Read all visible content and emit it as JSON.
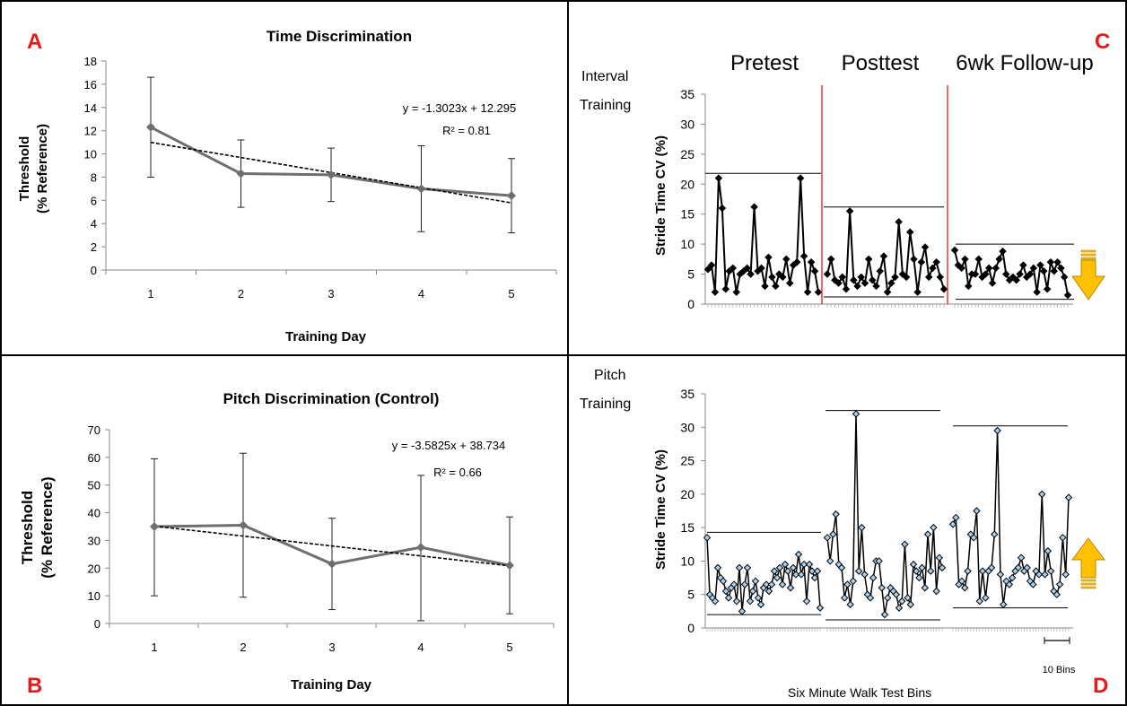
{
  "panel_letters": {
    "a": "A",
    "b": "B",
    "c": "C",
    "d": "D"
  },
  "colors": {
    "letter": "#e8191a",
    "series": "#6e6e6e",
    "divider_red": "#e8191a",
    "arrow_fill": "#ffc000",
    "arrow_edge": "#b8860b",
    "marker_blue": "#a9d1f0"
  },
  "chart_data": [
    {
      "panel": "A",
      "type": "line",
      "title": "Time Discrimination",
      "xlabel": "Training Day",
      "ylabel": [
        "Threshold",
        "(% Reference)"
      ],
      "x": [
        1,
        2,
        3,
        4,
        5
      ],
      "y": [
        12.3,
        8.3,
        8.2,
        7.0,
        6.4
      ],
      "error_upper": [
        16.6,
        11.2,
        10.5,
        10.7,
        9.6
      ],
      "error_lower": [
        8.0,
        5.4,
        5.9,
        3.3,
        3.2
      ],
      "trendline": {
        "slope": -1.3023,
        "intercept": 12.295
      },
      "equation": "y = -1.3023x + 12.295",
      "r2": "R² = 0.81",
      "ylim": [
        0,
        18
      ],
      "yticks": [
        0,
        2,
        4,
        6,
        8,
        10,
        12,
        14,
        16,
        18
      ],
      "xticks": [
        "1",
        "2",
        "3",
        "4",
        "5"
      ]
    },
    {
      "panel": "B",
      "type": "line",
      "title": "Pitch Discrimination (Control)",
      "xlabel": "Training Day",
      "ylabel": [
        "Threshold",
        "(% Reference)"
      ],
      "x": [
        1,
        2,
        3,
        4,
        5
      ],
      "y": [
        35.0,
        35.5,
        21.5,
        27.5,
        21.0
      ],
      "error_upper": [
        59.5,
        61.5,
        38.0,
        53.5,
        38.5
      ],
      "error_lower": [
        10.0,
        9.5,
        5.0,
        1.0,
        3.5
      ],
      "trendline": {
        "slope": -3.5825,
        "intercept": 38.734
      },
      "equation": "y = -3.5825x + 38.734",
      "r2": "R² = 0.66",
      "ylim": [
        0,
        70
      ],
      "yticks": [
        0,
        10,
        20,
        30,
        40,
        50,
        60,
        70
      ],
      "xticks": [
        "1",
        "2",
        "3",
        "4",
        "5"
      ]
    },
    {
      "panel": "C",
      "type": "line",
      "row_label": [
        "Interval",
        "Training"
      ],
      "phase_labels": [
        "Pretest",
        "Posttest",
        "6wk Follow-up"
      ],
      "ylabel": "Stride Time CV (%)",
      "ylim": [
        0,
        35
      ],
      "yticks": [
        0,
        5,
        10,
        15,
        20,
        25,
        30,
        35
      ],
      "segments": [
        {
          "name": "Pretest",
          "values": [
            5.8,
            6.5,
            2.0,
            21.0,
            16.0,
            2.5,
            5.5,
            6.0,
            2.0,
            5.0,
            5.5,
            6.0,
            5.0,
            16.2,
            5.5,
            6.0,
            3.0,
            7.8,
            4.5,
            3.0,
            5.0,
            4.5,
            7.5,
            3.5,
            6.5,
            7.0,
            21.0,
            8.0,
            2.0,
            7.0,
            5.5,
            2.0
          ],
          "max_line": 21.8,
          "min_line": null
        },
        {
          "name": "Posttest",
          "values": [
            5.0,
            7.5,
            4.0,
            3.5,
            4.5,
            2.5,
            15.5,
            4.0,
            3.0,
            4.5,
            3.5,
            7.5,
            4.0,
            3.0,
            5.5,
            8.0,
            2.0,
            3.5,
            4.5,
            13.7,
            5.0,
            4.5,
            12.0,
            7.5,
            2.0,
            7.0,
            9.5,
            4.5,
            6.0,
            7.0,
            4.5,
            2.5
          ],
          "max_line": 16.2,
          "min_line": 1.2
        },
        {
          "name": "6wk Follow-up",
          "values": [
            9.0,
            6.5,
            6.0,
            7.5,
            3.0,
            5.0,
            5.0,
            7.5,
            4.5,
            5.0,
            6.0,
            3.5,
            6.0,
            7.5,
            8.8,
            5.0,
            4.0,
            4.5,
            4.0,
            5.0,
            6.5,
            4.5,
            5.0,
            6.0,
            2.0,
            6.5,
            5.5,
            2.5,
            7.0,
            5.5,
            7.0,
            6.0,
            4.5,
            1.5
          ],
          "max_line": 10.0,
          "min_line": 0.8
        }
      ],
      "trend": "down"
    },
    {
      "panel": "D",
      "type": "line",
      "row_label": [
        "Pitch",
        "Training"
      ],
      "ylabel": "Stride Time CV (%)",
      "xlabel": "Six Minute Walk Test Bins",
      "scale_label": "10 Bins",
      "ylim": [
        0,
        35
      ],
      "yticks": [
        0,
        5,
        10,
        15,
        20,
        25,
        30,
        35
      ],
      "segments": [
        {
          "name": "Pretest",
          "values": [
            13.5,
            5.0,
            4.5,
            4.0,
            9.0,
            7.5,
            7.0,
            5.5,
            4.5,
            6.0,
            6.5,
            4.0,
            9.0,
            2.5,
            6.5,
            9.0,
            4.0,
            5.5,
            7.0,
            4.5,
            3.5,
            6.0,
            6.5,
            5.5,
            6.5,
            8.5,
            7.5,
            9.0,
            6.5,
            9.5,
            8.5,
            6.0,
            9.0,
            8.0,
            11.0,
            8.0,
            9.5,
            4.0,
            9.5,
            8.5,
            7.5,
            8.5,
            3.0
          ],
          "max_line": 14.3,
          "min_line": 2.0
        },
        {
          "name": "Posttest",
          "values": [
            13.5,
            10.0,
            14.0,
            17.0,
            9.5,
            9.0,
            4.5,
            6.5,
            3.5,
            7.0,
            32.0,
            8.5,
            15.0,
            8.0,
            5.0,
            4.5,
            7.5,
            10.0,
            10.0,
            6.0,
            2.0,
            4.5,
            6.0,
            5.5,
            5.0,
            3.0,
            4.0,
            12.5,
            4.5,
            3.5,
            9.5,
            8.5,
            7.5,
            9.0,
            6.0,
            14.0,
            8.5,
            15.0,
            5.5,
            10.5,
            9.0
          ],
          "max_line": 32.5,
          "min_line": 1.2
        },
        {
          "name": "6wk Follow-up",
          "values": [
            15.5,
            16.5,
            6.5,
            7.0,
            6.0,
            8.5,
            14.0,
            13.5,
            17.5,
            4.0,
            8.5,
            4.5,
            8.5,
            9.0,
            14.0,
            29.5,
            8.0,
            3.5,
            7.0,
            6.5,
            7.5,
            8.5,
            9.0,
            10.5,
            8.5,
            9.0,
            7.0,
            6.5,
            8.5,
            8.0,
            20.0,
            8.0,
            11.5,
            8.5,
            5.5,
            5.0,
            6.5,
            13.5,
            8.0,
            19.5
          ],
          "max_line": 30.2,
          "min_line": 3.0
        }
      ],
      "trend": "up"
    }
  ]
}
